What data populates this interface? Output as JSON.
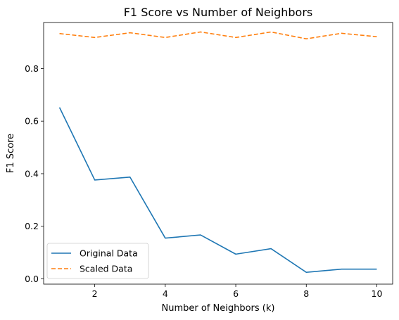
{
  "chart_data": {
    "type": "line",
    "title": "F1 Score vs Number of Neighbors",
    "xlabel": "Number of Neighbors (k)",
    "ylabel": "F1 Score",
    "x": [
      1,
      2,
      3,
      4,
      5,
      6,
      7,
      8,
      9,
      10
    ],
    "xlim": [
      0.55,
      10.45
    ],
    "ylim": [
      -0.02,
      0.975
    ],
    "xticks": [
      2,
      4,
      6,
      8,
      10
    ],
    "yticks": [
      0.0,
      0.2,
      0.4,
      0.6,
      0.8
    ],
    "ytick_labels": [
      "0.0",
      "0.2",
      "0.4",
      "0.6",
      "0.8"
    ],
    "grid": false,
    "legend_position": "lower-left",
    "series": [
      {
        "name": "Original Data",
        "color": "#1f77b4",
        "style": "solid",
        "values": [
          0.652,
          0.376,
          0.387,
          0.155,
          0.167,
          0.094,
          0.115,
          0.025,
          0.037,
          0.037
        ]
      },
      {
        "name": "Scaled Data",
        "color": "#ff7f0e",
        "style": "dashed",
        "values": [
          0.933,
          0.918,
          0.936,
          0.918,
          0.939,
          0.918,
          0.939,
          0.913,
          0.934,
          0.921
        ]
      }
    ]
  }
}
